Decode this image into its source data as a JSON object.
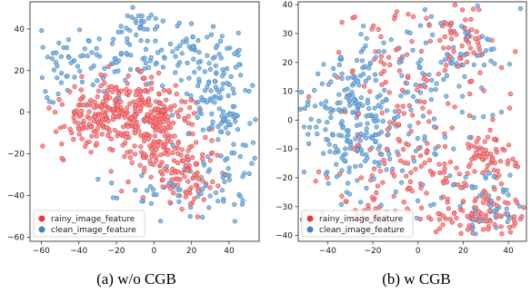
{
  "colors": {
    "rainy": "#e8393b",
    "clean": "#3d85c6",
    "rainy_fill": "#f0868a",
    "clean_fill": "#7fb0dc"
  },
  "chart_data": [
    {
      "type": "scatter",
      "caption": "(a) w/o CGB",
      "xlim": [
        -66,
        56
      ],
      "ylim": [
        -62,
        53
      ],
      "xticks": [
        -60,
        -40,
        -20,
        0,
        20,
        40
      ],
      "yticks": [
        -60,
        -40,
        -20,
        0,
        20,
        40
      ],
      "grid": false,
      "legend_position": "lower-left",
      "series": [
        {
          "name": "rainy_image_feature",
          "color_key": "rainy",
          "n": 500,
          "clusters": [
            {
              "cx": -15,
              "cy": 0,
              "sx": 17,
              "sy": 8,
              "w": 0.55
            },
            {
              "cx": 5,
              "cy": -15,
              "sx": 12,
              "sy": 10,
              "w": 0.25
            },
            {
              "cx": 20,
              "cy": -32,
              "sx": 7,
              "sy": 7,
              "w": 0.12
            },
            {
              "cx": -35,
              "cy": -5,
              "sx": 8,
              "sy": 6,
              "w": 0.08
            }
          ]
        },
        {
          "name": "clean_image_feature",
          "color_key": "clean",
          "n": 360,
          "clusters": [
            {
              "cx": 35,
              "cy": 5,
              "sx": 10,
              "sy": 12,
              "w": 0.28
            },
            {
              "cx": 25,
              "cy": 28,
              "sx": 12,
              "sy": 7,
              "w": 0.13
            },
            {
              "cx": -10,
              "cy": 30,
              "sx": 17,
              "sy": 10,
              "w": 0.22
            },
            {
              "cx": -48,
              "cy": 22,
              "sx": 8,
              "sy": 9,
              "w": 0.1
            },
            {
              "cx": 40,
              "cy": -30,
              "sx": 10,
              "sy": 9,
              "w": 0.14
            },
            {
              "cx": 0,
              "cy": -42,
              "sx": 12,
              "sy": 6,
              "w": 0.08
            },
            {
              "cx": -5,
              "cy": 45,
              "sx": 6,
              "sy": 4,
              "w": 0.05
            }
          ]
        }
      ]
    },
    {
      "type": "scatter",
      "caption": "(b) w CGB",
      "xlim": [
        -53,
        48
      ],
      "ylim": [
        -42,
        41
      ],
      "xticks": [
        -40,
        -20,
        0,
        20,
        40
      ],
      "yticks": [
        -40,
        -30,
        -20,
        -10,
        0,
        10,
        20,
        30,
        40
      ],
      "grid": false,
      "legend_position": "lower-left",
      "series": [
        {
          "name": "rainy_image_feature",
          "color_key": "rainy",
          "n": 430,
          "clusters": [
            {
              "cx": 28,
              "cy": -33,
              "sx": 10,
              "sy": 5,
              "w": 0.22
            },
            {
              "cx": 32,
              "cy": -12,
              "sx": 6,
              "sy": 5,
              "w": 0.12
            },
            {
              "cx": 20,
              "cy": 28,
              "sx": 7,
              "sy": 6,
              "w": 0.13
            },
            {
              "cx": -5,
              "cy": 8,
              "sx": 22,
              "sy": 18,
              "w": 0.33
            },
            {
              "cx": 5,
              "cy": -20,
              "sx": 12,
              "sy": 8,
              "w": 0.12
            },
            {
              "cx": -20,
              "cy": -33,
              "sx": 8,
              "sy": 5,
              "w": 0.08
            }
          ]
        },
        {
          "name": "clean_image_feature",
          "color_key": "clean",
          "n": 400,
          "clusters": [
            {
              "cx": -30,
              "cy": -5,
              "sx": 9,
              "sy": 9,
              "w": 0.35
            },
            {
              "cx": -30,
              "cy": 14,
              "sx": 10,
              "sy": 7,
              "w": 0.15
            },
            {
              "cx": 0,
              "cy": 5,
              "sx": 20,
              "sy": 18,
              "w": 0.3
            },
            {
              "cx": 30,
              "cy": -28,
              "sx": 9,
              "sy": 7,
              "w": 0.12
            },
            {
              "cx": 20,
              "cy": 25,
              "sx": 8,
              "sy": 8,
              "w": 0.08
            }
          ]
        }
      ]
    }
  ]
}
